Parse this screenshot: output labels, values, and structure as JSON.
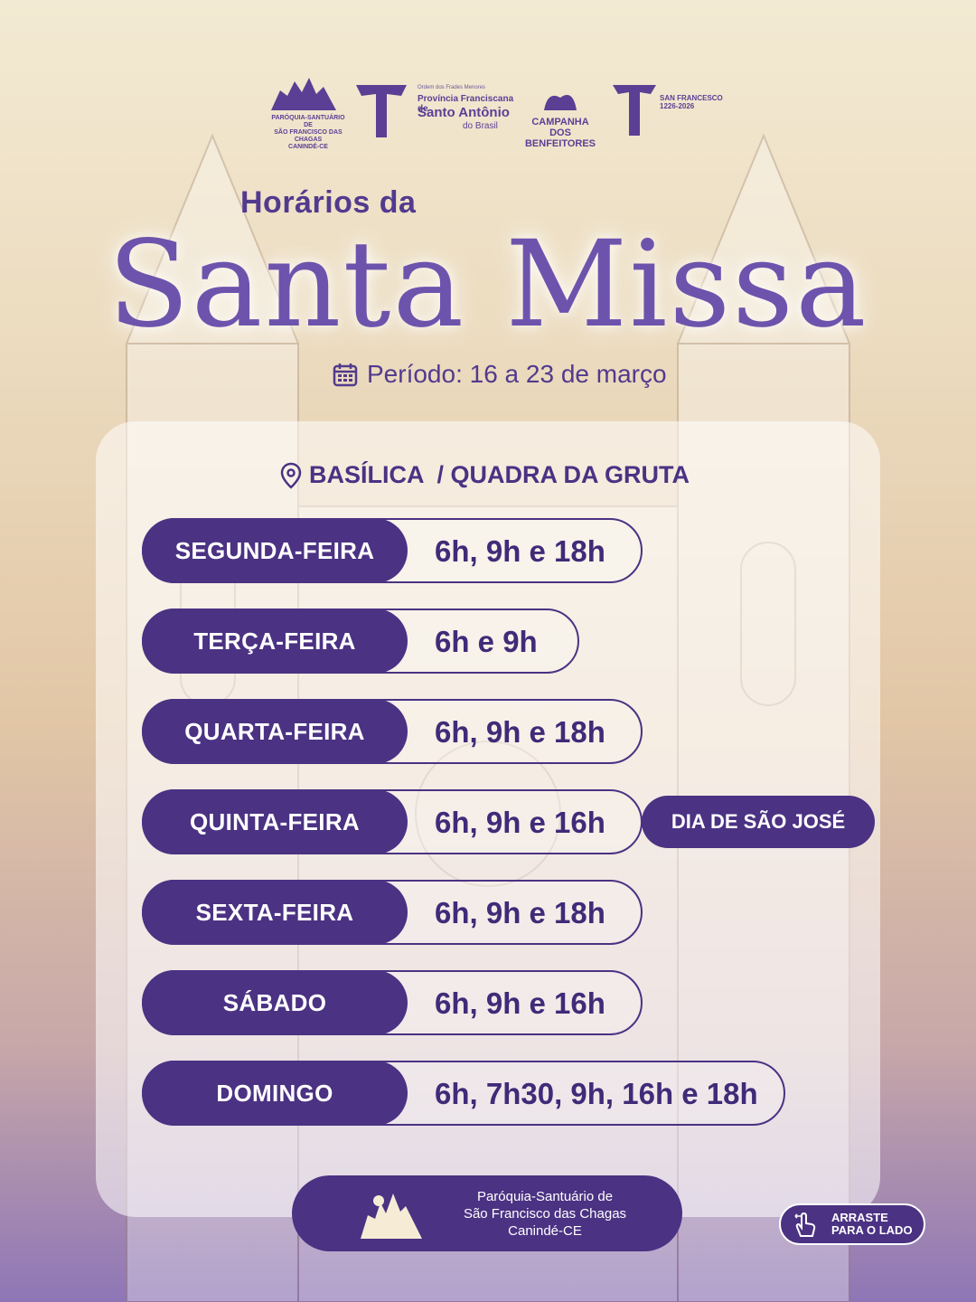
{
  "colors": {
    "primary": "#4b3283",
    "title": "#6e53ad",
    "text": "#3f2b78"
  },
  "logos": {
    "parish": {
      "line1": "PARÓQUIA-SANTUÁRIO DE",
      "line2": "SÃO FRANCISCO DAS CHAGAS",
      "line3": "CANINDÉ-CE"
    },
    "province": {
      "line1": "Ordem dos Frades Menores",
      "line2": "Província Franciscana de",
      "line3": "Santo Antônio",
      "line4": "do Brasil"
    },
    "campaign": {
      "line1": "CAMPANHA DOS",
      "line2": "BENFEITORES"
    },
    "saint": {
      "line1": "SAN FRANCESCO",
      "line2": "1226-2026"
    }
  },
  "header": {
    "subtitle": "Horários da",
    "title": "Santa Missa",
    "period_icon": "calendar-icon",
    "period": "Período: 16 a 23 de março"
  },
  "location": {
    "icon": "map-pin-icon",
    "label": "BASÍLICA  / QUADRA DA GRUTA"
  },
  "schedule": [
    {
      "day": "SEGUNDA-FEIRA",
      "times": "6h, 9h e 18h"
    },
    {
      "day": "TERÇA-FEIRA",
      "times": "6h e 9h"
    },
    {
      "day": "QUARTA-FEIRA",
      "times": "6h, 9h e 18h"
    },
    {
      "day": "QUINTA-FEIRA",
      "times": "6h, 9h e 16h",
      "note": "DIA DE SÃO JOSÉ"
    },
    {
      "day": "SEXTA-FEIRA",
      "times": "6h, 9h e 18h"
    },
    {
      "day": "SÁBADO",
      "times": "6h, 9h e 16h"
    },
    {
      "day": "DOMINGO",
      "times": "6h, 7h30, 9h, 16h e 18h"
    }
  ],
  "footer": {
    "line1": "Paróquia-Santuário de",
    "line2": "São Francisco das Chagas",
    "line3": "Canindé-CE"
  },
  "swipe": {
    "icon": "swipe-hand-icon",
    "line1": "ARRASTE",
    "line2": "PARA O LADO"
  }
}
